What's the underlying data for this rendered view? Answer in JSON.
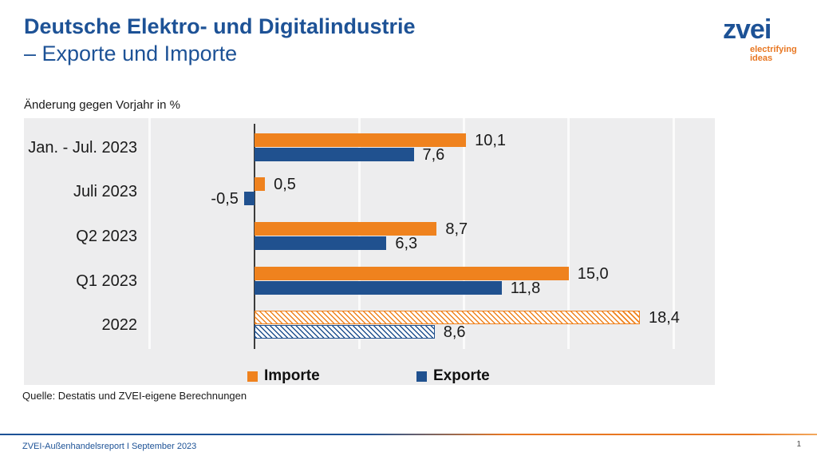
{
  "header": {
    "title_line1": "Deutsche Elektro- und Digitalindustrie",
    "title_line2": "– Exporte und Importe",
    "logo": {
      "wordmark": "zvei",
      "tagline_line1": "electrifying",
      "tagline_line2": "ideas"
    }
  },
  "chart_data": {
    "type": "bar",
    "orientation": "horizontal",
    "title": "Änderung gegen Vorjahr in %",
    "categories": [
      "Jan. - Jul. 2023",
      "Juli 2023",
      "Q2 2023",
      "Q1 2023",
      "2022"
    ],
    "series": [
      {
        "name": "Importe",
        "values": [
          10.1,
          0.5,
          8.7,
          15.0,
          18.4
        ],
        "labels": [
          "10,1",
          "0,5",
          "8,7",
          "15,0",
          "18,4"
        ]
      },
      {
        "name": "Exporte",
        "values": [
          7.6,
          -0.5,
          6.3,
          11.8,
          8.6
        ],
        "labels": [
          "7,6",
          "-0,5",
          "6,3",
          "11,8",
          "8,6"
        ]
      }
    ],
    "hatched_rows": [
      4
    ],
    "xlim": [
      -11,
      22
    ],
    "gridline_values": [
      -5,
      5,
      10,
      15,
      20
    ],
    "axis_value": 0,
    "grid": true,
    "legend_position": "bottom"
  },
  "source": "Quelle: Destatis und ZVEI-eigene Berechnungen",
  "footer": {
    "report": "ZVEI-Außenhandelsreport I September 2023",
    "page": "1"
  },
  "colors": {
    "importe": "#EF821E",
    "exporte": "#20518F",
    "blue_text": "#1D5296",
    "orange_logo": "#E87722",
    "chart_bg": "#EDEDEE"
  }
}
